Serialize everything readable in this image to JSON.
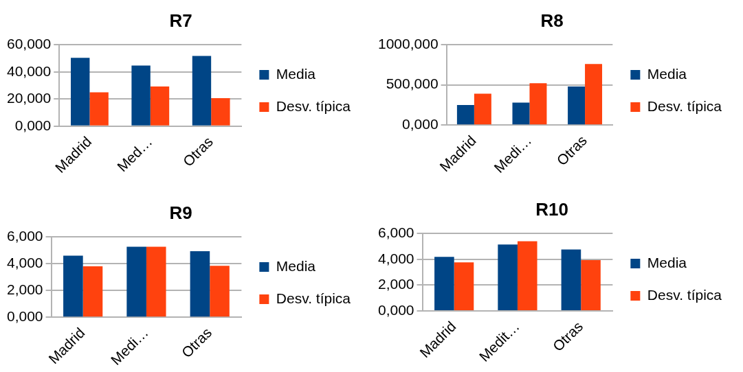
{
  "chart_data": [
    {
      "type": "bar",
      "title": "R7",
      "categories": [
        "Madrid",
        "Med…",
        "Otras"
      ],
      "series": [
        {
          "name": "Media",
          "color": "#004586",
          "values": [
            50.3,
            44.7,
            51.7
          ]
        },
        {
          "name": "Desv. típica",
          "color": "#ff420e",
          "values": [
            25,
            29.3,
            20.7
          ]
        }
      ],
      "ylim": [
        0,
        60
      ],
      "yticks": [
        {
          "value": 0,
          "label": "0,000"
        },
        {
          "value": 20,
          "label": "20,000"
        },
        {
          "value": 40,
          "label": "40,000"
        },
        {
          "value": 60,
          "label": "60,000"
        }
      ],
      "grid": "y",
      "legend": "right"
    },
    {
      "type": "bar",
      "title": "R8",
      "categories": [
        "Madrid",
        "Medi…",
        "Otras"
      ],
      "series": [
        {
          "name": "Media",
          "color": "#004586",
          "values": [
            250,
            280,
            480
          ]
        },
        {
          "name": "Desv. típica",
          "color": "#ff420e",
          "values": [
            390,
            520,
            760
          ]
        }
      ],
      "ylim": [
        0,
        1000
      ],
      "yticks": [
        {
          "value": 0,
          "label": "0,000"
        },
        {
          "value": 500,
          "label": "500,000"
        },
        {
          "value": 1000,
          "label": "1000,000"
        }
      ],
      "grid": "y",
      "legend": "right"
    },
    {
      "type": "bar",
      "title": "R9",
      "categories": [
        "Madrid",
        "Medi…",
        "Otras"
      ],
      "series": [
        {
          "name": "Media",
          "color": "#004586",
          "values": [
            4.6,
            5.26,
            4.93
          ]
        },
        {
          "name": "Desv. típica",
          "color": "#ff420e",
          "values": [
            3.81,
            5.26,
            3.84
          ]
        }
      ],
      "ylim": [
        0,
        6
      ],
      "yticks": [
        {
          "value": 0,
          "label": "0,000"
        },
        {
          "value": 2,
          "label": "2,000"
        },
        {
          "value": 4,
          "label": "4,000"
        },
        {
          "value": 6,
          "label": "6,000"
        }
      ],
      "grid": "y",
      "legend": "right"
    },
    {
      "type": "bar",
      "title": "R10",
      "categories": [
        "Madrid",
        "Medit…",
        "Otras"
      ],
      "series": [
        {
          "name": "Media",
          "color": "#004586",
          "values": [
            4.19,
            5.14,
            4.76
          ]
        },
        {
          "name": "Desv. típica",
          "color": "#ff420e",
          "values": [
            3.77,
            5.4,
            3.93
          ]
        }
      ],
      "ylim": [
        0,
        6
      ],
      "yticks": [
        {
          "value": 0,
          "label": "0,000"
        },
        {
          "value": 2,
          "label": "2,000"
        },
        {
          "value": 4,
          "label": "4,000"
        },
        {
          "value": 6,
          "label": "6,000"
        }
      ],
      "grid": "y",
      "legend": "right"
    }
  ]
}
